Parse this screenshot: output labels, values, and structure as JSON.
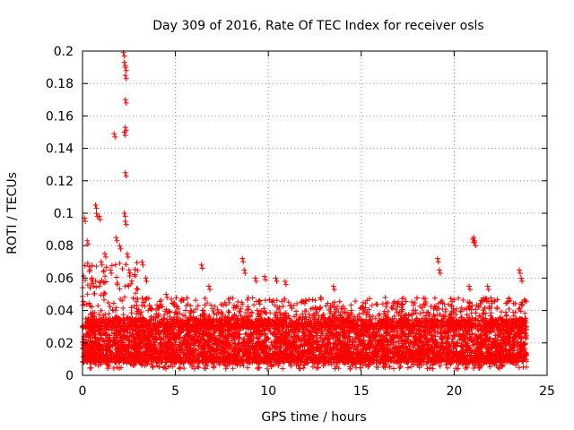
{
  "chart_data": {
    "type": "scatter",
    "title": "Day 309 of 2016, Rate Of TEC Index for receiver osls",
    "xlabel": "GPS time / hours",
    "ylabel": "ROTI / TECUs",
    "xlim": [
      0,
      25
    ],
    "ylim": [
      0,
      0.2
    ],
    "xticks": [
      "0",
      "5",
      "10",
      "15",
      "20",
      "25"
    ],
    "yticks": [
      "0",
      "0.02",
      "0.04",
      "0.06",
      "0.08",
      "0.1",
      "0.12",
      "0.14",
      "0.16",
      "0.18",
      "0.2"
    ],
    "grid": true,
    "marker": "plus",
    "color": "#ff0000",
    "series": [
      {
        "x_range": [
          0,
          23.9
        ],
        "typical_band": [
          0.008,
          0.035
        ],
        "outliers": [
          [
            0.1,
            0.097
          ],
          [
            0.25,
            0.083
          ],
          [
            0.35,
            0.067
          ],
          [
            0.5,
            0.06
          ],
          [
            0.7,
            0.105
          ],
          [
            0.75,
            0.1
          ],
          [
            0.9,
            0.098
          ],
          [
            1.0,
            0.07
          ],
          [
            1.2,
            0.075
          ],
          [
            1.5,
            0.065
          ],
          [
            1.7,
            0.149
          ],
          [
            1.8,
            0.085
          ],
          [
            2.0,
            0.08
          ],
          [
            2.2,
            0.199
          ],
          [
            2.25,
            0.193
          ],
          [
            2.3,
            0.19
          ],
          [
            2.3,
            0.185
          ],
          [
            2.3,
            0.17
          ],
          [
            2.3,
            0.153
          ],
          [
            2.25,
            0.15
          ],
          [
            2.3,
            0.125
          ],
          [
            2.25,
            0.1
          ],
          [
            2.3,
            0.095
          ],
          [
            2.4,
            0.075
          ],
          [
            2.5,
            0.065
          ],
          [
            3.2,
            0.07
          ],
          [
            3.4,
            0.06
          ],
          [
            4.5,
            0.05
          ],
          [
            6.4,
            0.068
          ],
          [
            6.8,
            0.055
          ],
          [
            8.6,
            0.072
          ],
          [
            8.7,
            0.065
          ],
          [
            9.3,
            0.06
          ],
          [
            9.8,
            0.061
          ],
          [
            10.4,
            0.06
          ],
          [
            10.9,
            0.058
          ],
          [
            13.5,
            0.055
          ],
          [
            19.1,
            0.072
          ],
          [
            19.2,
            0.065
          ],
          [
            20.8,
            0.055
          ],
          [
            21.0,
            0.084
          ],
          [
            21.05,
            0.085
          ],
          [
            21.1,
            0.082
          ],
          [
            21.8,
            0.055
          ],
          [
            23.5,
            0.065
          ],
          [
            23.6,
            0.06
          ]
        ]
      }
    ]
  }
}
